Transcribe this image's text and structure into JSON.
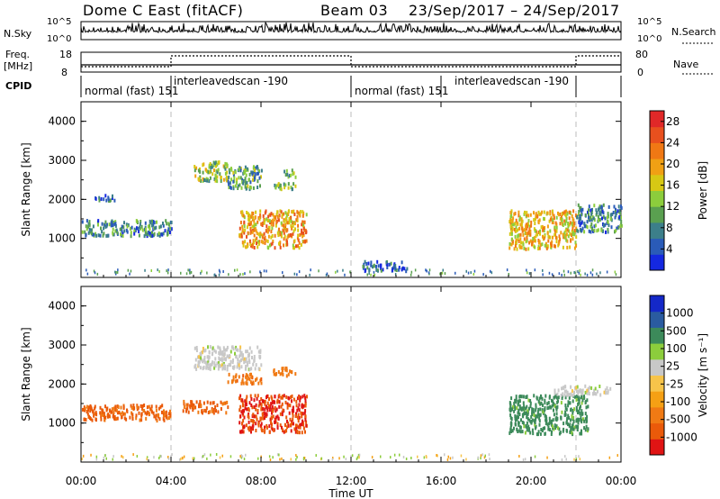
{
  "header": {
    "title": "Dome C East (fitACF)",
    "beam": "Beam 03",
    "date_range": "23/Sep/2017 – 24/Sep/2017"
  },
  "nsky_panel": {
    "label": "N.Sky",
    "left_ticks": [
      "10^5",
      "10^0"
    ],
    "right_label": "N.Search",
    "right_ticks": [
      "10^5",
      "10^0"
    ]
  },
  "freq_panel": {
    "label_line1": "Freq.",
    "label_line2": "[MHz]",
    "left_ticks": [
      "18",
      "8"
    ],
    "right_label": "Nave",
    "right_ticks": [
      "80",
      "0"
    ]
  },
  "cpid_panel": {
    "label": "CPID",
    "segments": [
      {
        "text": "normal (fast) 151",
        "start_h": 0
      },
      {
        "text": "interleavedscan -190",
        "start_h": 4
      },
      {
        "text": "normal (fast) 151",
        "start_h": 12
      },
      {
        "text": "interleavedscan -190",
        "start_h": 16
      },
      {
        "text": "",
        "start_h": 22
      }
    ]
  },
  "colors": {
    "power_scale": [
      "#1428e0",
      "#2a5bb8",
      "#3c7f8a",
      "#5aa050",
      "#8ccd3c",
      "#d7c814",
      "#f0a014",
      "#f07814",
      "#e8501e",
      "#e02828"
    ],
    "velocity_scale": [
      "#e01414",
      "#ea5a0a",
      "#f07a14",
      "#f5a014",
      "#f7c44a",
      "#c8c8c8",
      "#8ccd3c",
      "#3c8a5a",
      "#2a5ba0",
      "#1428c8"
    ]
  },
  "chart_data": [
    {
      "type": "heatmap",
      "title": "",
      "xlabel": "Time UT",
      "ylabel": "Slant Range [km]",
      "xlim": [
        0,
        24
      ],
      "ylim": [
        0,
        4500
      ],
      "x_ticks": [
        "00:00",
        "04:00",
        "08:00",
        "12:00",
        "16:00",
        "20:00",
        "00:00"
      ],
      "y_ticks": [
        "1000",
        "2000",
        "3000",
        "4000"
      ],
      "colorbar": {
        "label": "Power [dB]",
        "range": [
          0,
          30
        ],
        "ticks": [
          "4",
          "8",
          "12",
          "16",
          "20",
          "24",
          "28"
        ]
      },
      "regions": [
        {
          "x": [
            0.0,
            4.0
          ],
          "y": [
            1100,
            1500
          ],
          "value": 8
        },
        {
          "x": [
            0.5,
            1.5
          ],
          "y": [
            2000,
            2150
          ],
          "value": 6
        },
        {
          "x": [
            5.0,
            6.5
          ],
          "y": [
            2500,
            3000
          ],
          "value": 14
        },
        {
          "x": [
            6.5,
            8.0
          ],
          "y": [
            2300,
            2900
          ],
          "value": 10
        },
        {
          "x": [
            7.0,
            10.0
          ],
          "y": [
            800,
            1750
          ],
          "value": 20
        },
        {
          "x": [
            8.5,
            9.5
          ],
          "y": [
            2250,
            2450
          ],
          "value": 12
        },
        {
          "x": [
            9.0,
            9.5
          ],
          "y": [
            2600,
            2800
          ],
          "value": 10
        },
        {
          "x": [
            12.5,
            14.5
          ],
          "y": [
            200,
            450
          ],
          "value": 6
        },
        {
          "x": [
            19.0,
            22.0
          ],
          "y": [
            750,
            1750
          ],
          "value": 18
        },
        {
          "x": [
            22.0,
            24.0
          ],
          "y": [
            1200,
            1900
          ],
          "value": 8
        }
      ]
    },
    {
      "type": "heatmap",
      "title": "",
      "xlabel": "Time UT",
      "ylabel": "Slant Range [km]",
      "xlim": [
        0,
        24
      ],
      "ylim": [
        0,
        4500
      ],
      "x_ticks": [
        "00:00",
        "04:00",
        "08:00",
        "12:00",
        "16:00",
        "20:00",
        "00:00"
      ],
      "y_ticks": [
        "1000",
        "2000",
        "3000",
        "4000"
      ],
      "colorbar": {
        "label": "Velocity [m s⁻¹]",
        "range": [
          -1000,
          1000
        ],
        "ticks": [
          "1000",
          "500",
          "100",
          "25",
          "-25",
          "-100",
          "-500",
          "-1000"
        ]
      },
      "regions": [
        {
          "x": [
            0.0,
            4.0
          ],
          "y": [
            1100,
            1500
          ],
          "value": -300
        },
        {
          "x": [
            4.5,
            6.5
          ],
          "y": [
            1300,
            1600
          ],
          "value": -300
        },
        {
          "x": [
            5.0,
            8.0
          ],
          "y": [
            2400,
            3000
          ],
          "value": 0
        },
        {
          "x": [
            6.5,
            8.0
          ],
          "y": [
            2050,
            2300
          ],
          "value": -200
        },
        {
          "x": [
            7.0,
            10.0
          ],
          "y": [
            800,
            1750
          ],
          "value": -500
        },
        {
          "x": [
            8.5,
            9.5
          ],
          "y": [
            2250,
            2450
          ],
          "value": -150
        },
        {
          "x": [
            19.0,
            22.5
          ],
          "y": [
            750,
            1750
          ],
          "value": 150
        },
        {
          "x": [
            21.0,
            23.5
          ],
          "y": [
            1750,
            2000
          ],
          "value": 0
        }
      ]
    }
  ]
}
